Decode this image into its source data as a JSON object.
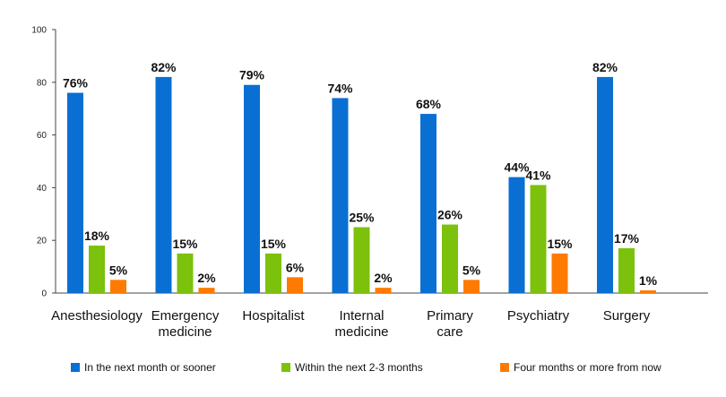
{
  "chart_data": {
    "type": "bar",
    "categories": [
      [
        "Anesthesiology"
      ],
      [
        "Emergency",
        "medicine"
      ],
      [
        "Hospitalist"
      ],
      [
        "Internal",
        "medicine"
      ],
      [
        "Primary",
        "care"
      ],
      [
        "Psychiatry"
      ],
      [
        "Surgery"
      ]
    ],
    "series": [
      {
        "name": "In the next month or sooner",
        "color": "#0a6fd3",
        "values": [
          76,
          82,
          79,
          74,
          68,
          44,
          82
        ]
      },
      {
        "name": "Within the next 2-3 months",
        "color": "#7cc10b",
        "values": [
          18,
          15,
          15,
          25,
          26,
          41,
          17
        ]
      },
      {
        "name": "Four months or more from now",
        "color": "#ff7a00",
        "values": [
          5,
          2,
          6,
          2,
          5,
          15,
          1
        ]
      }
    ],
    "data_label_suffix": "%",
    "ylim": [
      0,
      100
    ],
    "yticks": [
      0,
      20,
      40,
      60,
      80,
      100
    ],
    "grid": false,
    "legend_position": "bottom"
  }
}
